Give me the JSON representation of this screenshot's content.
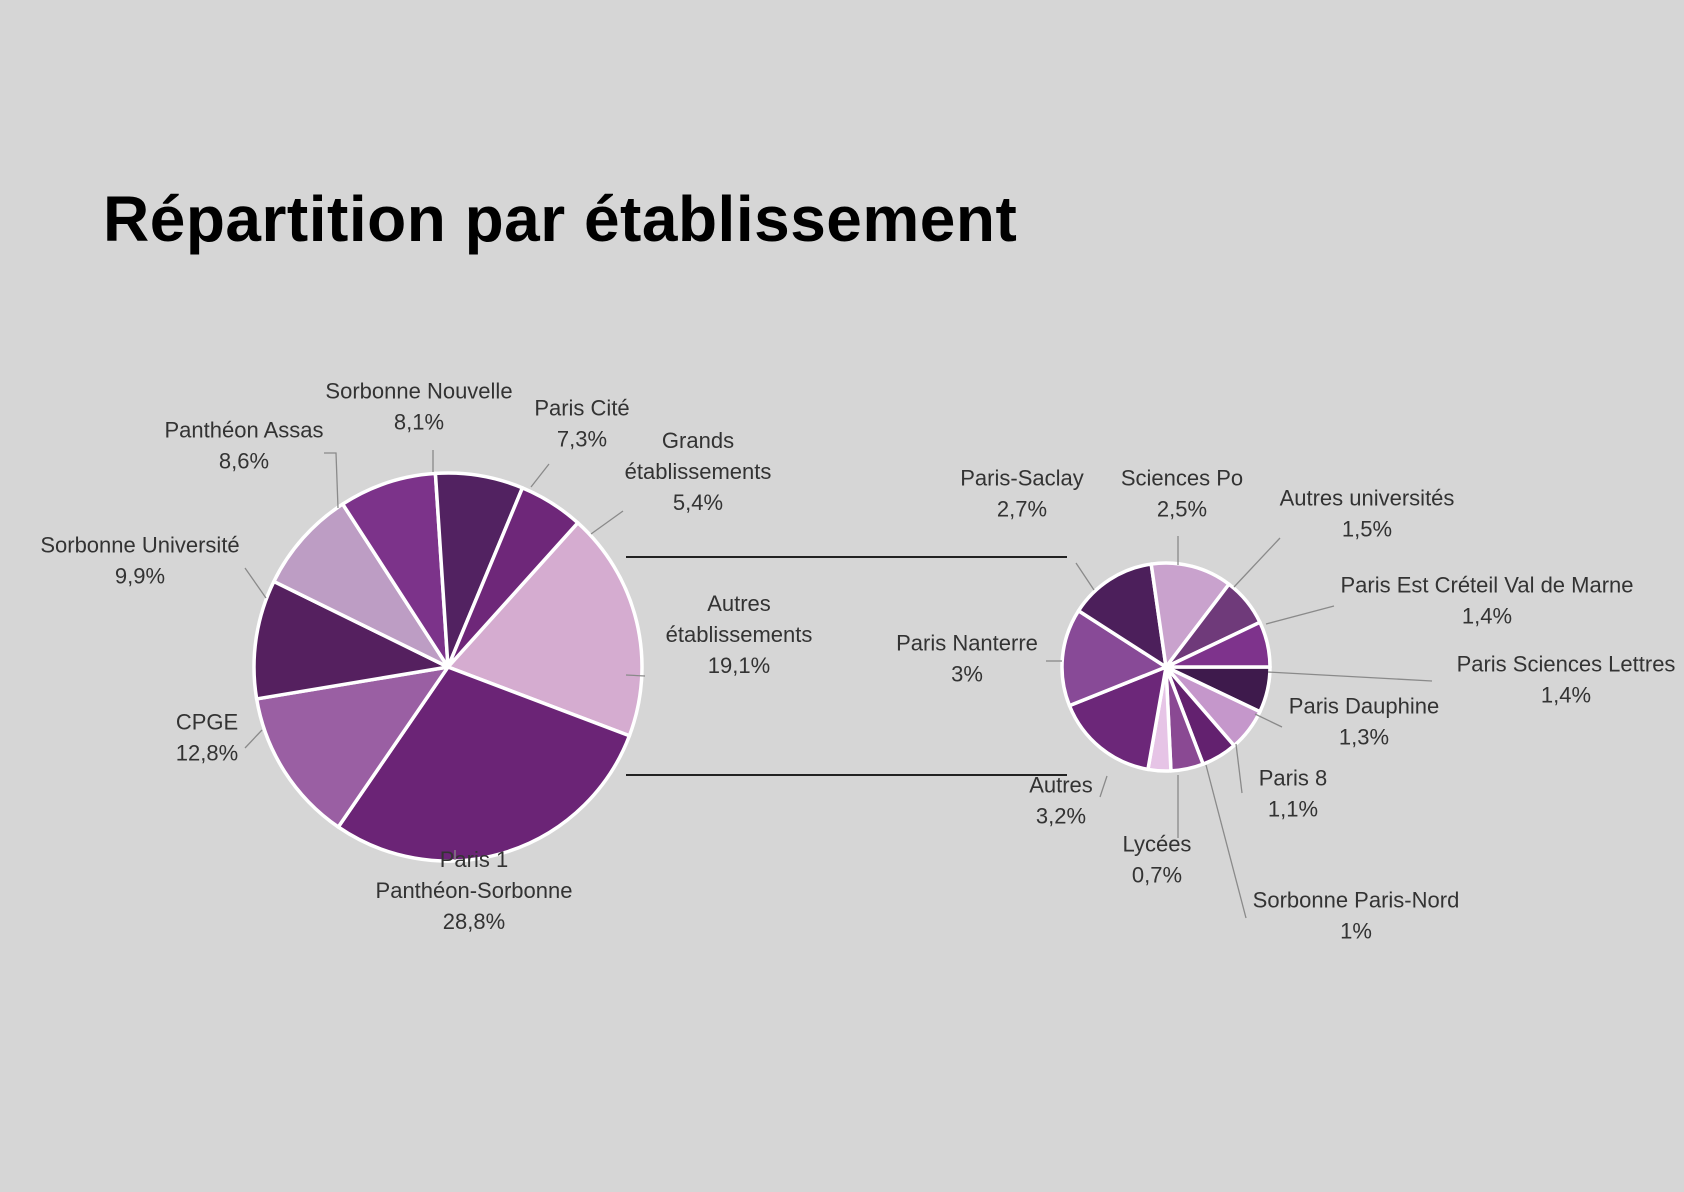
{
  "title": "Répartition par établissement",
  "colors": {
    "background": "#d6d6d6",
    "slice_border": "#ffffff"
  },
  "chart_data": [
    {
      "type": "pie",
      "title": "",
      "slices": [
        {
          "name": "Autres établissements",
          "label": [
            "Autres",
            "établissements"
          ],
          "value_label": "19,1%",
          "value": 19.1,
          "color": "#d5acd0"
        },
        {
          "name": "Paris 1 Panthéon-Sorbonne",
          "label": [
            "Paris 1",
            "Panthéon-Sorbonne"
          ],
          "value_label": "28,8%",
          "value": 28.8,
          "color": "#6b2476"
        },
        {
          "name": "CPGE",
          "label": [
            "CPGE"
          ],
          "value_label": "12,8%",
          "value": 12.8,
          "color": "#9a5fa3"
        },
        {
          "name": "Sorbonne Université",
          "label": [
            "Sorbonne Université"
          ],
          "value_label": "9,9%",
          "value": 9.9,
          "color": "#55205f"
        },
        {
          "name": "Panthéon Assas",
          "label": [
            "Panthéon Assas"
          ],
          "value_label": "8,6%",
          "value": 8.6,
          "color": "#bd9dc4"
        },
        {
          "name": "Sorbonne Nouvelle",
          "label": [
            "Sorbonne Nouvelle"
          ],
          "value_label": "8,1%",
          "value": 8.1,
          "color": "#7c338a"
        },
        {
          "name": "Paris Cité",
          "label": [
            "Paris Cité"
          ],
          "value_label": "7,3%",
          "value": 7.3,
          "color": "#522261"
        },
        {
          "name": "Grands établissements",
          "label": [
            "Grands",
            "établissements"
          ],
          "value_label": "5,4%",
          "value": 5.4,
          "color": "#6e2779"
        }
      ]
    },
    {
      "type": "pie",
      "title": "",
      "slices": [
        {
          "name": "Paris Sciences Lettres",
          "label": [
            "Paris Sciences Lettres"
          ],
          "value_label": "1,4%",
          "value": 1.4,
          "color": "#3e1a4c"
        },
        {
          "name": "Paris Dauphine",
          "label": [
            "Paris Dauphine"
          ],
          "value_label": "1,3%",
          "value": 1.3,
          "color": "#c597cb"
        },
        {
          "name": "Paris 8",
          "label": [
            "Paris 8"
          ],
          "value_label": "1,1%",
          "value": 1.1,
          "color": "#63216f"
        },
        {
          "name": "Sorbonne Paris-Nord",
          "label": [
            "Sorbonne Paris-Nord"
          ],
          "value_label": "1%",
          "value": 1.0,
          "color": "#8a4993"
        },
        {
          "name": "Lycées",
          "label": [
            "Lycées"
          ],
          "value_label": "0,7%",
          "value": 0.7,
          "color": "#e6c4e6"
        },
        {
          "name": "Autres",
          "label": [
            "Autres"
          ],
          "value_label": "3,2%",
          "value": 3.2,
          "color": "#6c2779"
        },
        {
          "name": "Paris Nanterre",
          "label": [
            "Paris Nanterre"
          ],
          "value_label": "3%",
          "value": 3.0,
          "color": "#884a97"
        },
        {
          "name": "Paris-Saclay",
          "label": [
            "Paris-Saclay"
          ],
          "value_label": "2,7%",
          "value": 2.7,
          "color": "#4c1f5b"
        },
        {
          "name": "Sciences Po",
          "label": [
            "Sciences Po"
          ],
          "value_label": "2,5%",
          "value": 2.5,
          "color": "#c9a2cd"
        },
        {
          "name": "Autres universités",
          "label": [
            "Autres universités"
          ],
          "value_label": "1,5%",
          "value": 1.5,
          "color": "#6f3a7a"
        },
        {
          "name": "Paris Est Créteil Val de Marne",
          "label": [
            "Paris Est Créteil Val de Marne"
          ],
          "value_label": "1,4%",
          "value": 1.4,
          "color": "#7e338c"
        }
      ]
    }
  ]
}
